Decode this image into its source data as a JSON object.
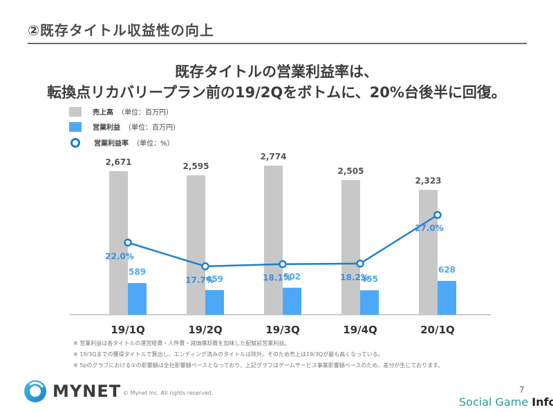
{
  "header": {
    "section_title": "②既存タイトル収益性の向上",
    "headline_line1": "既存タイトルの営業利益率は、",
    "headline_line2": "転換点リカバリープラン前の19/2Qをボトムに、20%台後半に回復。"
  },
  "legend": {
    "items": [
      {
        "label": "売上高",
        "unit": "（単位：百万円）",
        "color": "#c8c8c8"
      },
      {
        "label": "営業利益",
        "unit": "（単位：百万円）",
        "color": "#4da9f7"
      },
      {
        "label": "営業利益率",
        "unit": "（単位：%）",
        "color": "#1c7fd0"
      }
    ]
  },
  "chart_data": {
    "type": "bar",
    "categories": [
      "19/1Q",
      "19/2Q",
      "19/3Q",
      "19/4Q",
      "20/1Q"
    ],
    "series": [
      {
        "name": "売上高",
        "values": [
          2671,
          2595,
          2774,
          2505,
          2323
        ],
        "labels": [
          "2,671",
          "2,595",
          "2,774",
          "2,505",
          "2,323"
        ],
        "color": "#c8c8c8"
      },
      {
        "name": "営業利益",
        "values": [
          589,
          459,
          502,
          455,
          628
        ],
        "labels": [
          "589",
          "459",
          "502",
          "455",
          "628"
        ],
        "color": "#4da9f7"
      },
      {
        "name": "営業利益率",
        "values": [
          22.0,
          17.7,
          18.1,
          18.2,
          27.0
        ],
        "labels": [
          "22.0%",
          "17.7%",
          "18.1%",
          "18.2%",
          "27.0%"
        ],
        "color": "#1c7fd0",
        "type": "line"
      }
    ],
    "ylim_bars": [
      0,
      2900
    ],
    "legend_position": "top-left"
  },
  "notes": [
    "※ 営業利益は各タイトルの運営経費・人件費・減価償却費を加味した配賦前営業利益。",
    "※ 19/3Qまでの獲得タイトルで算出し、エンディング済みのタイトルは除外。そのため売上は19/3Qが最も高くなっている。",
    "※ 5pのグラフにおける②の影響額は全社影響額ベースとなっており、上記グラフはゲームサービス事業影響額ベースのため、差分が生じております。"
  ],
  "footer": {
    "logo_text": "MYNET",
    "copyright": "© Mynet Inc. All rights reserved.",
    "page_number": "7",
    "watermark_part1": "Social Game ",
    "watermark_part2": "Info"
  }
}
